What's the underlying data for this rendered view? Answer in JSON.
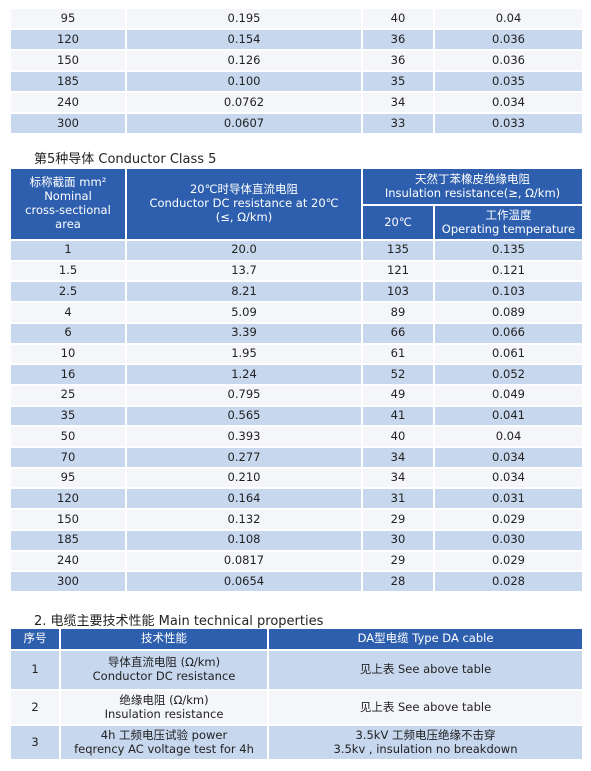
{
  "top_table": {
    "rows": [
      [
        "95",
        "0.195",
        "40",
        "0.04"
      ],
      [
        "120",
        "0.154",
        "36",
        "0.036"
      ],
      [
        "150",
        "0.126",
        "36",
        "0.036"
      ],
      [
        "185",
        "0.100",
        "35",
        "0.035"
      ],
      [
        "240",
        "0.0762",
        "34",
        "0.034"
      ],
      [
        "300",
        "0.0607",
        "33",
        "0.033"
      ]
    ]
  },
  "class5": {
    "title": "第5种导体   Conductor Class 5",
    "header": {
      "area": [
        "标称截面 mm²",
        "Nominal",
        "cross-sectional",
        "area"
      ],
      "resistance": [
        "20℃时导体直流电阻",
        "Conductor DC resistance  at 20℃",
        "(≤, Ω/km)"
      ],
      "insulation": [
        "天然丁苯橡皮绝缘电阻",
        "Insulation resistance(≥, Ω/km)"
      ],
      "at20": [
        "20℃"
      ],
      "operating": [
        "工作温度",
        "Operating temperature"
      ]
    },
    "rows": [
      [
        "1",
        "20.0",
        "135",
        "0.135"
      ],
      [
        "1.5",
        "13.7",
        "121",
        "0.121"
      ],
      [
        "2.5",
        "8.21",
        "103",
        "0.103"
      ],
      [
        "4",
        "5.09",
        "89",
        "0.089"
      ],
      [
        "6",
        "3.39",
        "66",
        "0.066"
      ],
      [
        "10",
        "1.95",
        "61",
        "0.061"
      ],
      [
        "16",
        "1.24",
        "52",
        "0.052"
      ],
      [
        "25",
        "0.795",
        "49",
        "0.049"
      ],
      [
        "35",
        "0.565",
        "41",
        "0.041"
      ],
      [
        "50",
        "0.393",
        "40",
        "0.04"
      ],
      [
        "70",
        "0.277",
        "34",
        "0.034"
      ],
      [
        "95",
        "0.210",
        "34",
        "0.034"
      ],
      [
        "120",
        "0.164",
        "31",
        "0.031"
      ],
      [
        "150",
        "0.132",
        "29",
        "0.029"
      ],
      [
        "185",
        "0.108",
        "30",
        "0.030"
      ],
      [
        "240",
        "0.0817",
        "29",
        "0.029"
      ],
      [
        "300",
        "0.0654",
        "28",
        "0.028"
      ]
    ]
  },
  "section2": {
    "title": "2. 电缆主要技术性能   Main technical properties",
    "header": [
      "序号",
      "技术性能",
      "DA型电缆   Type DA cable"
    ],
    "rows": [
      {
        "no": "1",
        "property": [
          "导体直流电阻 (Ω/km)",
          "Conductor DC resistance"
        ],
        "value": [
          "见上表 See above table"
        ]
      },
      {
        "no": "2",
        "property": [
          "绝缘电阻 (Ω/km)",
          "Insulation resistance"
        ],
        "value": [
          "见上表 See above table"
        ]
      },
      {
        "no": "3",
        "property": [
          "4h 工频电压试验 power",
          "feqrency AC voltage test for 4h"
        ],
        "value": [
          "3.5kV 工频电压绝缘不击穿",
          "3.5kv , insulation no breakdown"
        ]
      }
    ]
  }
}
